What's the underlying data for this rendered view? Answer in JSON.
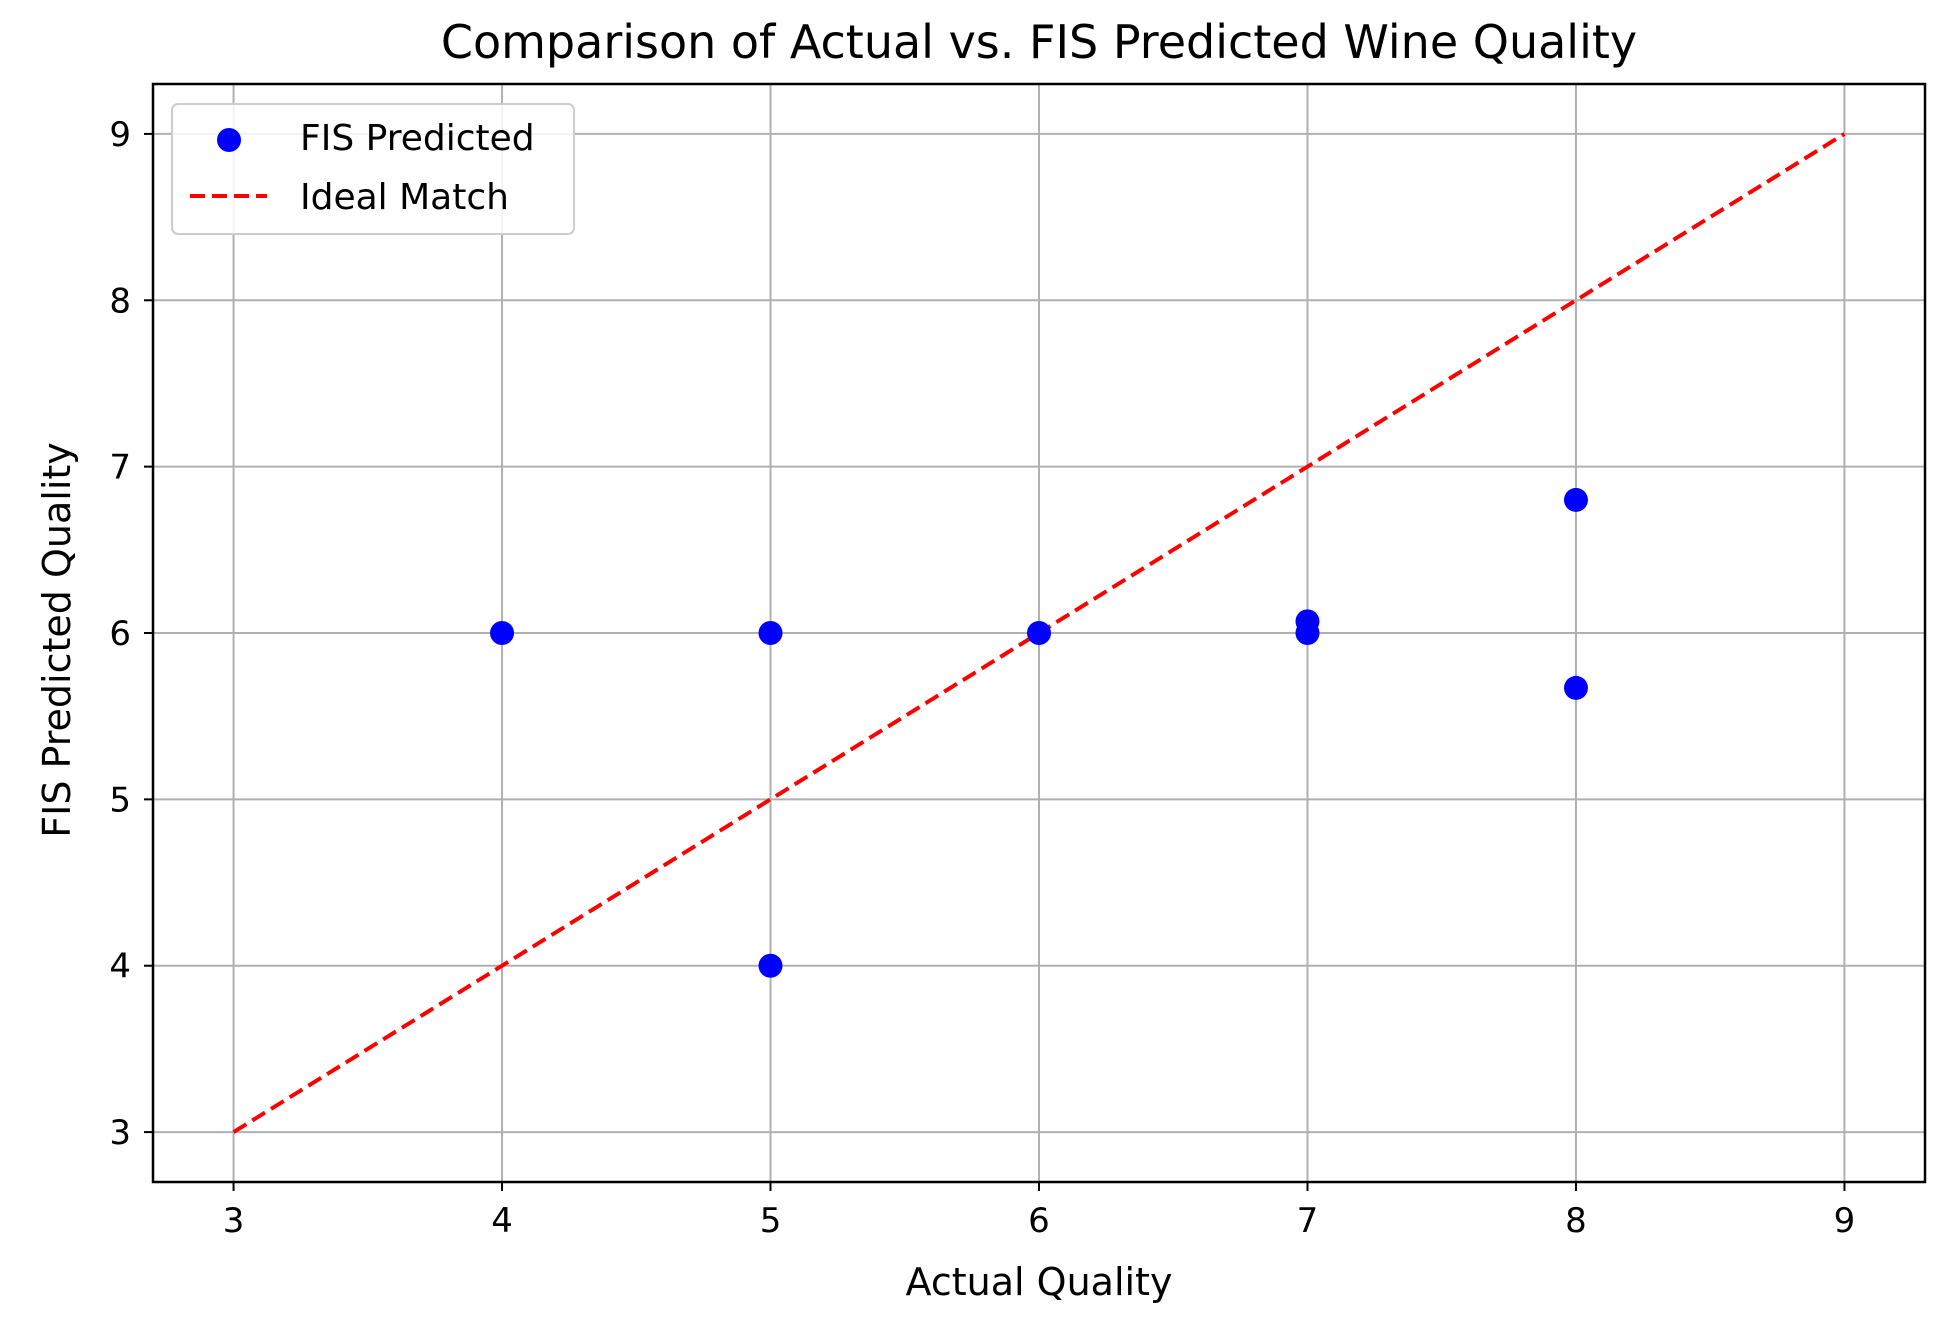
{
  "chart_data": {
    "type": "scatter",
    "title": "Comparison of Actual vs. FIS Predicted Wine Quality",
    "xlabel": "Actual Quality",
    "ylabel": "FIS Predicted Quality",
    "xlim": [
      2.7,
      9.3
    ],
    "ylim": [
      2.7,
      9.3
    ],
    "xticks": [
      3,
      4,
      5,
      6,
      7,
      8,
      9
    ],
    "yticks": [
      3,
      4,
      5,
      6,
      7,
      8,
      9
    ],
    "grid": true,
    "legend_position": "top-left",
    "series": [
      {
        "name": "FIS Predicted",
        "kind": "scatter",
        "color": "#0000ff",
        "points": [
          {
            "x": 4,
            "y": 6.0
          },
          {
            "x": 5,
            "y": 6.0
          },
          {
            "x": 5,
            "y": 4.0
          },
          {
            "x": 6,
            "y": 6.0
          },
          {
            "x": 7,
            "y": 6.0
          },
          {
            "x": 7,
            "y": 6.07
          },
          {
            "x": 8,
            "y": 6.8
          },
          {
            "x": 8,
            "y": 5.67
          }
        ]
      },
      {
        "name": "Ideal Match",
        "kind": "line",
        "style": "dashed",
        "color": "#ff0000",
        "points": [
          {
            "x": 3,
            "y": 3
          },
          {
            "x": 9,
            "y": 9
          }
        ]
      }
    ]
  }
}
